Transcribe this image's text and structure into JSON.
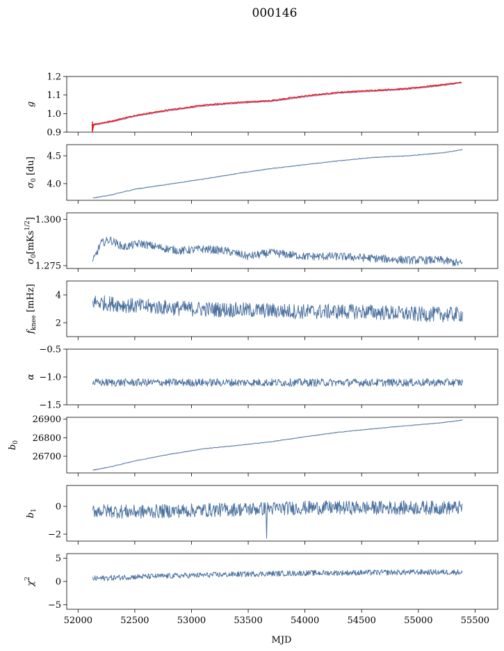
{
  "title": "000146",
  "xlabel": "MJD",
  "x_ticks": [
    "52000",
    "52500",
    "53000",
    "53500",
    "54000",
    "54500",
    "55000",
    "55500"
  ],
  "chart_data": [
    {
      "type": "line",
      "ylabel": "g",
      "xlim": [
        51900,
        55700
      ],
      "ylim": [
        0.9,
        1.2
      ],
      "y_ticks": [
        "0.9",
        "1.0",
        "1.1",
        "1.2"
      ],
      "series": [
        {
          "color": "#9b78b8",
          "x": [
            52120,
            52300,
            52500,
            52800,
            53100,
            53400,
            53700,
            54000,
            54300,
            54600,
            54900,
            55200,
            55380
          ],
          "y": [
            0.935,
            0.955,
            0.985,
            1.015,
            1.04,
            1.055,
            1.065,
            1.09,
            1.11,
            1.12,
            1.13,
            1.15,
            1.165
          ]
        },
        {
          "color": "#e41a1c",
          "x": [
            52120,
            52300,
            52500,
            52800,
            53100,
            53400,
            53700,
            54000,
            54300,
            54600,
            54900,
            55200,
            55380
          ],
          "y": [
            0.94,
            0.96,
            0.99,
            1.02,
            1.045,
            1.06,
            1.07,
            1.095,
            1.115,
            1.125,
            1.135,
            1.155,
            1.168
          ]
        }
      ]
    },
    {
      "type": "line",
      "ylabel": "σ0 [du]",
      "xlim": [
        51900,
        55700
      ],
      "ylim": [
        3.7,
        4.7
      ],
      "y_ticks": [
        "4.0",
        "4.5"
      ],
      "series": [
        {
          "color": "#4c72a0",
          "x": [
            52130,
            52300,
            52500,
            52800,
            53100,
            53400,
            53700,
            54000,
            54300,
            54600,
            54900,
            55200,
            55390
          ],
          "y": [
            3.74,
            3.8,
            3.9,
            3.99,
            4.08,
            4.18,
            4.27,
            4.34,
            4.41,
            4.47,
            4.5,
            4.55,
            4.61
          ]
        }
      ]
    },
    {
      "type": "line",
      "ylabel": "σ0[mKs1/2]",
      "xlim": [
        51900,
        55700
      ],
      "ylim": [
        1.2735,
        1.3035
      ],
      "y_ticks": [
        "1.275",
        "1.300"
      ],
      "series": [
        {
          "color": "#4c72a0",
          "x": [
            52130,
            52200,
            52280,
            52400,
            52550,
            52700,
            52900,
            53100,
            53300,
            53500,
            53700,
            54000,
            54300,
            54600,
            54900,
            55200,
            55390
          ],
          "y": [
            1.277,
            1.287,
            1.289,
            1.285,
            1.287,
            1.285,
            1.283,
            1.284,
            1.283,
            1.28,
            1.282,
            1.28,
            1.28,
            1.279,
            1.278,
            1.278,
            1.276
          ]
        }
      ]
    },
    {
      "type": "line",
      "ylabel": "fknee [mHz]",
      "xlim": [
        51900,
        55700
      ],
      "ylim": [
        1.0,
        5.0
      ],
      "y_ticks": [
        "2",
        "4"
      ],
      "series": [
        {
          "color": "#4c72a0",
          "x": [
            52130,
            52500,
            53000,
            53500,
            54000,
            54500,
            55000,
            55390
          ],
          "y": [
            3.5,
            3.2,
            3.0,
            2.9,
            2.8,
            2.8,
            2.6,
            2.6
          ]
        }
      ]
    },
    {
      "type": "line",
      "ylabel": "α",
      "xlim": [
        51900,
        55700
      ],
      "ylim": [
        -1.5,
        -0.5
      ],
      "y_ticks": [
        "−1.5",
        "−1.0",
        "−0.5"
      ],
      "series": [
        {
          "color": "#4c72a0",
          "x": [
            52130,
            52500,
            53000,
            53500,
            54000,
            54500,
            55000,
            55390
          ],
          "y": [
            -1.1,
            -1.1,
            -1.1,
            -1.1,
            -1.1,
            -1.1,
            -1.1,
            -1.1
          ]
        }
      ]
    },
    {
      "type": "line",
      "ylabel": "b0",
      "xlim": [
        51900,
        55700
      ],
      "ylim": [
        26610,
        26910
      ],
      "y_ticks": [
        "26700",
        "26800",
        "26900"
      ],
      "series": [
        {
          "color": "#4c72a0",
          "x": [
            52130,
            52300,
            52500,
            52800,
            53100,
            53400,
            53700,
            54000,
            54300,
            54600,
            54900,
            55200,
            55390
          ],
          "y": [
            26625,
            26645,
            26675,
            26710,
            26740,
            26758,
            26778,
            26805,
            26830,
            26848,
            26865,
            26880,
            26895
          ]
        }
      ]
    },
    {
      "type": "line",
      "ylabel": "b1",
      "xlim": [
        51900,
        55700
      ],
      "ylim": [
        -2.5,
        1.5
      ],
      "y_ticks": [
        "−2",
        "0"
      ],
      "series": [
        {
          "color": "#4c72a0",
          "x": [
            52130,
            52500,
            53000,
            53500,
            54000,
            54500,
            55000,
            55390
          ],
          "y": [
            -0.3,
            -0.4,
            -0.3,
            -0.2,
            -0.1,
            -0.1,
            -0.1,
            -0.1
          ]
        }
      ]
    },
    {
      "type": "line",
      "ylabel": "χ2",
      "xlim": [
        51900,
        55700
      ],
      "ylim": [
        -6,
        6
      ],
      "y_ticks": [
        "−5",
        "0",
        "5"
      ],
      "series": [
        {
          "color": "#4c72a0",
          "x": [
            52130,
            52500,
            53000,
            53500,
            54000,
            54500,
            55000,
            55390
          ],
          "y": [
            0.6,
            1.0,
            1.3,
            1.6,
            1.8,
            1.9,
            2.0,
            2.0
          ]
        }
      ]
    }
  ]
}
